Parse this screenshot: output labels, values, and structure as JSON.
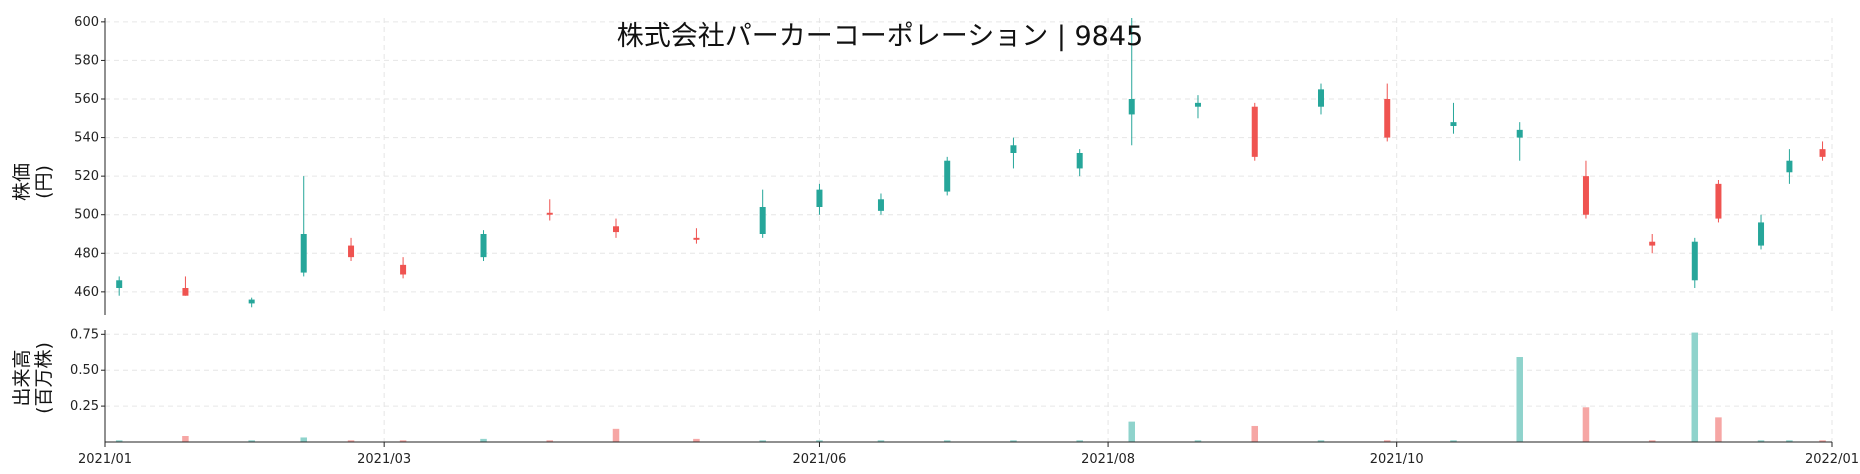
{
  "chart_data": {
    "type": "candlestick",
    "title": "株式会社パーカーコーポレーション | 9845",
    "colors": {
      "up": "#26a69a",
      "down": "#ef5350",
      "up_volume": "#8fd3cc",
      "down_volume": "#f6a6a4"
    },
    "grid": true,
    "price_panel": {
      "ylabel": [
        "株価",
        "(円)"
      ],
      "ylim": [
        448,
        602
      ],
      "yticks": [
        460,
        480,
        500,
        520,
        540,
        560,
        580,
        600
      ],
      "ytick_labels": [
        "460",
        "480",
        "500",
        "520",
        "540",
        "560",
        "580",
        "600"
      ]
    },
    "volume_panel": {
      "ylabel": [
        "出来高",
        "(百万株)"
      ],
      "ylim": [
        0,
        0.78
      ],
      "yticks": [
        0.25,
        0.5,
        0.75
      ],
      "ytick_labels": [
        "0.25",
        "0.50",
        "0.75"
      ]
    },
    "x_axis": {
      "start": "2021-01-04",
      "end": "2021-12-30",
      "ticks": [
        "2021-01-01",
        "2021-03-01",
        "2021-06-01",
        "2021-08-01",
        "2021-10-01",
        "2022-01-01"
      ],
      "tick_labels": [
        "2021/01",
        "2021/03",
        "2021/06",
        "2021/08",
        "2021/10",
        "2022/01"
      ]
    },
    "series": [
      {
        "date": "2021-01-04",
        "open": 462,
        "high": 468,
        "low": 458,
        "close": 466,
        "volume": 0.01
      },
      {
        "date": "2021-01-18",
        "open": 462,
        "high": 468,
        "low": 458,
        "close": 458,
        "volume": 0.04
      },
      {
        "date": "2021-02-01",
        "open": 454,
        "high": 457,
        "low": 452,
        "close": 456,
        "volume": 0.01
      },
      {
        "date": "2021-02-12",
        "open": 470,
        "high": 520,
        "low": 468,
        "close": 490,
        "volume": 0.03
      },
      {
        "date": "2021-02-22",
        "open": 484,
        "high": 488,
        "low": 476,
        "close": 478,
        "volume": 0.01
      },
      {
        "date": "2021-03-05",
        "open": 474,
        "high": 478,
        "low": 467,
        "close": 469,
        "volume": 0.01
      },
      {
        "date": "2021-03-22",
        "open": 478,
        "high": 492,
        "low": 476,
        "close": 490,
        "volume": 0.02
      },
      {
        "date": "2021-04-05",
        "open": 501,
        "high": 508,
        "low": 497,
        "close": 500,
        "volume": 0.01
      },
      {
        "date": "2021-04-19",
        "open": 494,
        "high": 498,
        "low": 488,
        "close": 491,
        "volume": 0.09
      },
      {
        "date": "2021-05-06",
        "open": 488,
        "high": 493,
        "low": 485,
        "close": 487,
        "volume": 0.02
      },
      {
        "date": "2021-05-20",
        "open": 490,
        "high": 513,
        "low": 488,
        "close": 504,
        "volume": 0.01
      },
      {
        "date": "2021-06-01",
        "open": 504,
        "high": 516,
        "low": 500,
        "close": 513,
        "volume": 0.01
      },
      {
        "date": "2021-06-14",
        "open": 502,
        "high": 511,
        "low": 500,
        "close": 508,
        "volume": 0.01
      },
      {
        "date": "2021-06-28",
        "open": 512,
        "high": 530,
        "low": 510,
        "close": 528,
        "volume": 0.01
      },
      {
        "date": "2021-07-12",
        "open": 532,
        "high": 540,
        "low": 524,
        "close": 536,
        "volume": 0.01
      },
      {
        "date": "2021-07-26",
        "open": 524,
        "high": 534,
        "low": 520,
        "close": 532,
        "volume": 0.01
      },
      {
        "date": "2021-08-06",
        "open": 552,
        "high": 602,
        "low": 536,
        "close": 560,
        "volume": 0.14
      },
      {
        "date": "2021-08-20",
        "open": 556,
        "high": 562,
        "low": 550,
        "close": 558,
        "volume": 0.01
      },
      {
        "date": "2021-09-01",
        "open": 556,
        "high": 558,
        "low": 528,
        "close": 530,
        "volume": 0.11
      },
      {
        "date": "2021-09-15",
        "open": 556,
        "high": 568,
        "low": 552,
        "close": 565,
        "volume": 0.01
      },
      {
        "date": "2021-09-29",
        "open": 560,
        "high": 568,
        "low": 538,
        "close": 540,
        "volume": 0.01
      },
      {
        "date": "2021-10-13",
        "open": 546,
        "high": 558,
        "low": 542,
        "close": 548,
        "volume": 0.01
      },
      {
        "date": "2021-10-27",
        "open": 540,
        "high": 548,
        "low": 528,
        "close": 544,
        "volume": 0.59
      },
      {
        "date": "2021-11-10",
        "open": 520,
        "high": 528,
        "low": 498,
        "close": 500,
        "volume": 0.24
      },
      {
        "date": "2021-11-24",
        "open": 486,
        "high": 490,
        "low": 480,
        "close": 484,
        "volume": 0.01
      },
      {
        "date": "2021-12-03",
        "open": 466,
        "high": 488,
        "low": 462,
        "close": 486,
        "volume": 0.76
      },
      {
        "date": "2021-12-08",
        "open": 516,
        "high": 518,
        "low": 496,
        "close": 498,
        "volume": 0.17
      },
      {
        "date": "2021-12-17",
        "open": 484,
        "high": 500,
        "low": 482,
        "close": 496,
        "volume": 0.01
      },
      {
        "date": "2021-12-23",
        "open": 522,
        "high": 534,
        "low": 516,
        "close": 528,
        "volume": 0.01
      },
      {
        "date": "2021-12-30",
        "open": 534,
        "high": 538,
        "low": 528,
        "close": 530,
        "volume": 0.01
      }
    ]
  }
}
